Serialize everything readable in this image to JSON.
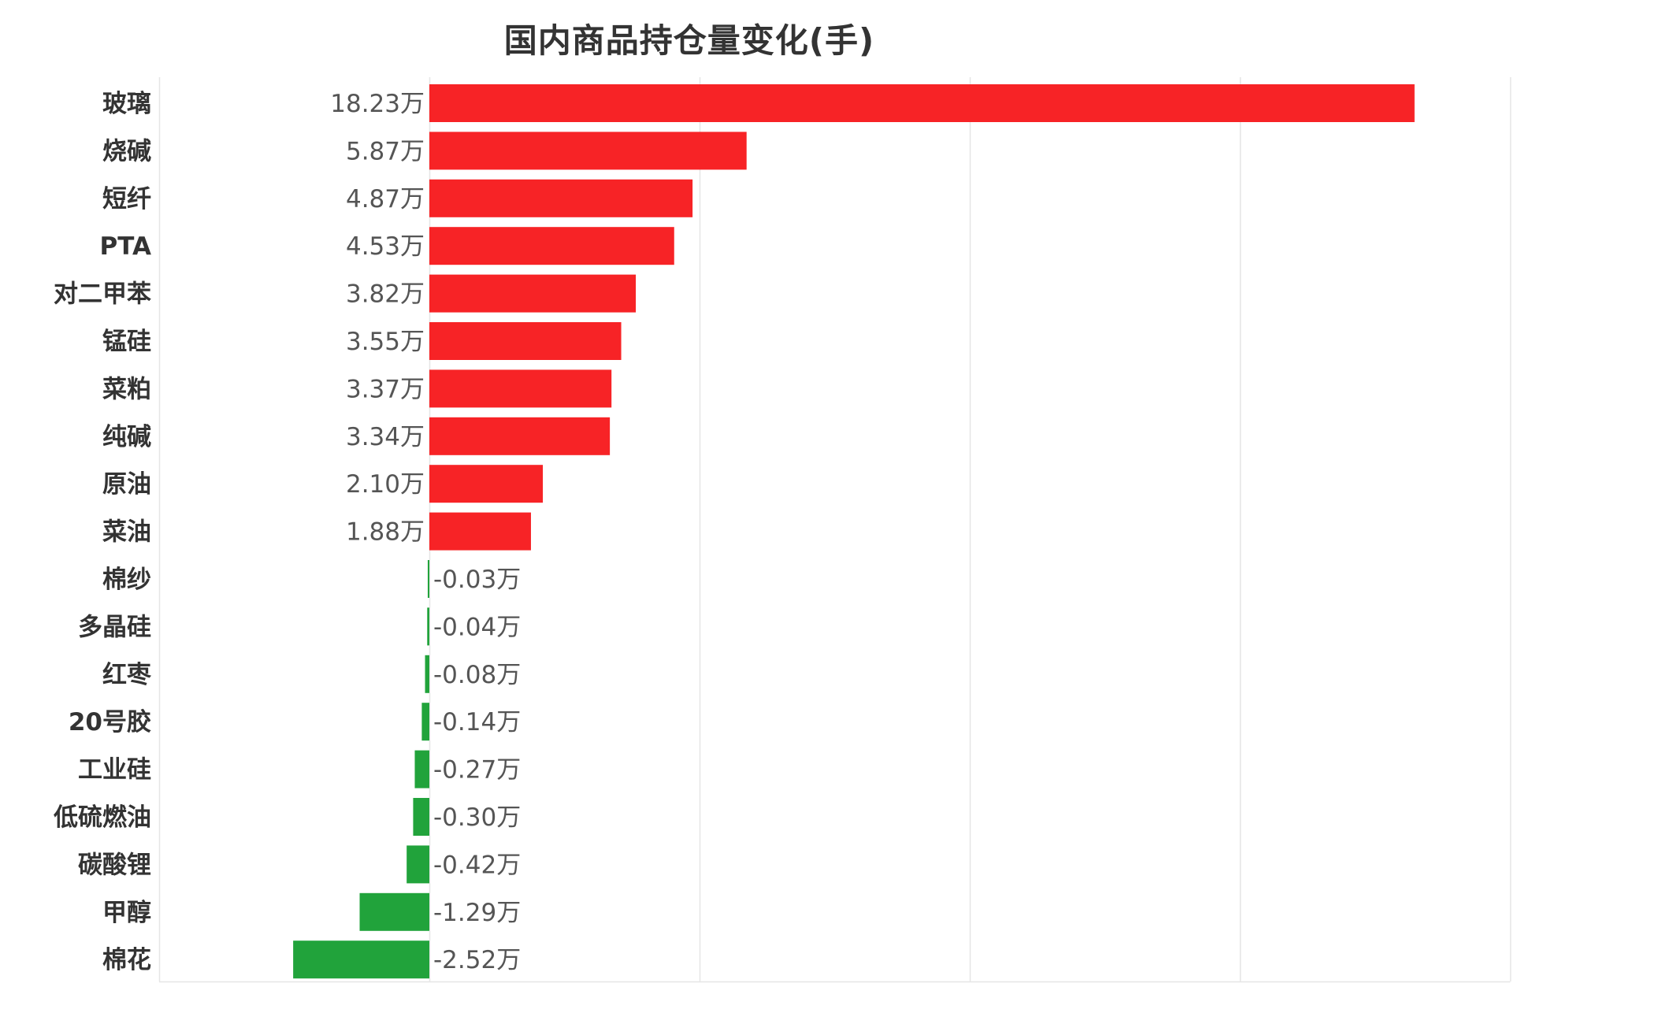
{
  "chart_data": {
    "type": "bar",
    "orientation": "horizontal",
    "title": "国内商品持仓量变化(手)",
    "categories": [
      "玻璃",
      "烧碱",
      "短纤",
      "PTA",
      "对二甲苯",
      "锰硅",
      "菜粕",
      "纯碱",
      "原油",
      "菜油",
      "棉纱",
      "多晶硅",
      "红枣",
      "20号胶",
      "工业硅",
      "低硫燃油",
      "碳酸锂",
      "甲醇",
      "棉花"
    ],
    "values": [
      18.23,
      5.87,
      4.87,
      4.53,
      3.82,
      3.55,
      3.37,
      3.34,
      2.1,
      1.88,
      -0.03,
      -0.04,
      -0.08,
      -0.14,
      -0.27,
      -0.3,
      -0.42,
      -1.29,
      -2.52
    ],
    "value_labels": [
      "18.23万",
      "5.87万",
      "4.87万",
      "4.53万",
      "3.82万",
      "3.55万",
      "3.37万",
      "3.34万",
      "2.10万",
      "1.88万",
      "-0.03万",
      "-0.04万",
      "-0.08万",
      "-0.14万",
      "-0.27万",
      "-0.30万",
      "-0.42万",
      "-1.29万",
      "-2.52万"
    ],
    "unit": "万",
    "xlim": [
      -5,
      20
    ],
    "grid": true,
    "legend": "none",
    "colors": {
      "positive": "#f72326",
      "negative": "#21a33b",
      "grid": "#e6e6e6",
      "category_text": "#333333",
      "value_text": "#555555"
    }
  }
}
